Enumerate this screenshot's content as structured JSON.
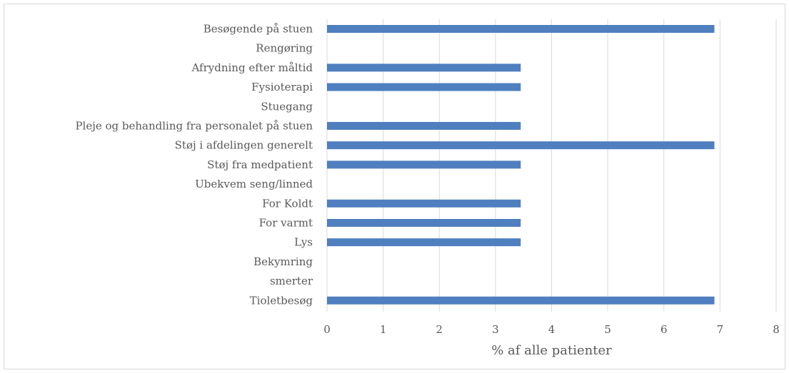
{
  "chart_data": {
    "type": "bar",
    "orientation": "horizontal",
    "title": "",
    "xlabel": "% af alle patienter",
    "ylabel": "",
    "xlim": [
      0,
      8
    ],
    "x_ticks": [
      "0",
      "1",
      "2",
      "3",
      "4",
      "5",
      "6",
      "7",
      "8"
    ],
    "grid": "vertical",
    "legend": "none",
    "bar_color": "#4f7fbf",
    "gridline_color": "#d9d9d9",
    "categories": [
      "Besøgende på stuen",
      "Rengøring",
      "Afrydning efter måltid",
      "Fysioterapi",
      "Stuegang",
      "Pleje og behandling fra personalet på stuen",
      "Støj i afdelingen generelt",
      "Støj fra medpatient",
      "Ubekvem seng/linned",
      "For Koldt",
      "For varmt",
      "Lys",
      "Bekymring",
      "smerter",
      "Tioletbesøg"
    ],
    "values": [
      6.9,
      0,
      3.45,
      3.45,
      0,
      3.45,
      6.9,
      3.45,
      0,
      3.45,
      3.45,
      3.45,
      0,
      0,
      6.9
    ]
  }
}
